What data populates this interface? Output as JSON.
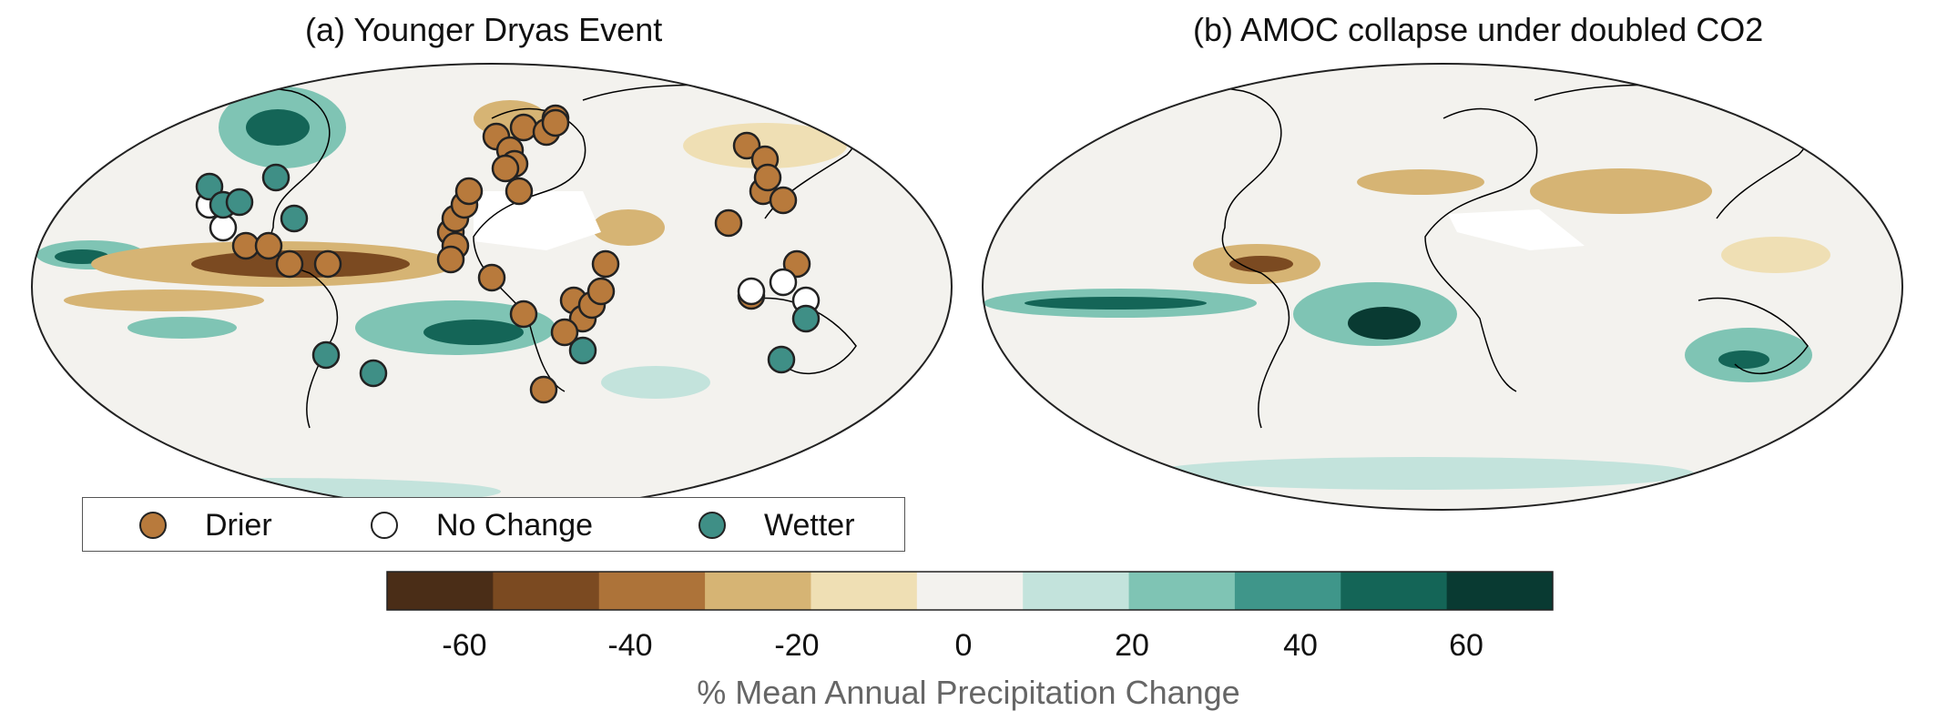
{
  "panels": {
    "a": {
      "title": "(a) Younger Dryas Event"
    },
    "b": {
      "title": "(b) AMOC collapse under doubled CO2"
    }
  },
  "legend": {
    "items": [
      {
        "label": "Drier",
        "color": "#b87a3c"
      },
      {
        "label": "No Change",
        "color": "#ffffff"
      },
      {
        "label": "Wetter",
        "color": "#3f8f86"
      }
    ]
  },
  "colorbar": {
    "label": "% Mean Annual Precipitation Change",
    "ticks": [
      "-60",
      "-40",
      "-20",
      "0",
      "20",
      "40",
      "60"
    ],
    "colors": [
      "#4a2d17",
      "#7b4a21",
      "#ad7339",
      "#d6b474",
      "#efdfb4",
      "#f3f2ee",
      "#c3e3dc",
      "#7fc4b4",
      "#3f968a",
      "#146557",
      "#093a32"
    ]
  }
}
